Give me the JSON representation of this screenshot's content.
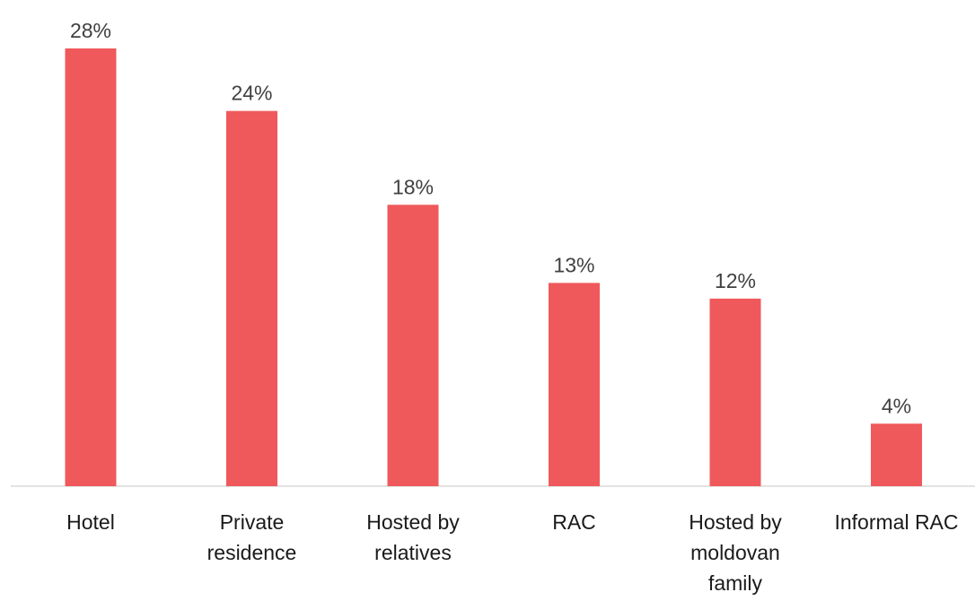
{
  "chart_data": {
    "type": "bar",
    "categories": [
      [
        "Hotel"
      ],
      [
        "Private",
        "residence"
      ],
      [
        "Hosted by",
        "relatives"
      ],
      [
        "RAC"
      ],
      [
        "Hosted by",
        "moldovan",
        "family"
      ],
      [
        "Informal RAC"
      ]
    ],
    "values": [
      28,
      24,
      18,
      13,
      12,
      4
    ],
    "value_labels": [
      "28%",
      "24%",
      "18%",
      "13%",
      "12%",
      "4%"
    ],
    "ylim": [
      0,
      28
    ],
    "grid": false,
    "legend": "none",
    "colors": {
      "bar": "#ef595b",
      "axis": "#d9d9d9"
    }
  }
}
